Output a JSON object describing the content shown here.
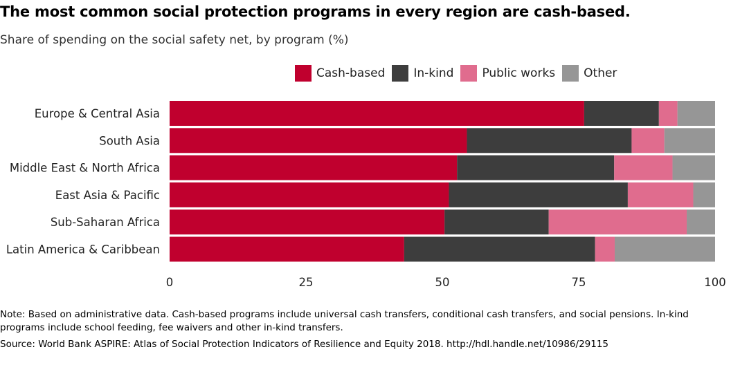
{
  "title": "The most common social protection programs in every region are cash-based.",
  "subtitle": "Share of spending on the social safety net, by program (%)",
  "note": "Note: Based on administrative data. Cash-based programs include universal cash transfers, conditional cash transfers, and social pensions. In-kind programs include school feeding, fee waivers and other in-kind transfers.",
  "source": "Source: World Bank ASPIRE: Atlas of Social Protection Indicators of Resilience and Equity  2018. http://hdl.handle.net/10986/29115",
  "chart_data": {
    "type": "bar",
    "orientation": "horizontal",
    "stacked": true,
    "categories": [
      "Europe & Central Asia",
      "South Asia",
      "Middle East & North Africa",
      "East Asia & Pacific",
      "Sub-Saharan Africa",
      "Latin America & Caribbean"
    ],
    "series": [
      {
        "name": "Cash-based",
        "color": "#c0002e",
        "values": [
          76,
          54.5,
          52.7,
          51.2,
          50.4,
          43
        ]
      },
      {
        "name": "In-kind",
        "color": "#3d3d3d",
        "values": [
          13.7,
          30.2,
          28.8,
          32.8,
          19.1,
          35
        ]
      },
      {
        "name": "Public works",
        "color": "#e06c8e",
        "values": [
          3.4,
          6,
          10.7,
          12,
          25.3,
          3.6
        ]
      },
      {
        "name": "Other",
        "color": "#969696",
        "values": [
          6.9,
          9.3,
          7.8,
          4,
          5.2,
          18.4
        ]
      }
    ],
    "xlim": [
      0,
      100
    ],
    "xticks": [
      0,
      25,
      50,
      75,
      100
    ],
    "xlabel": "",
    "ylabel": "",
    "legend_position": "top-right",
    "grid": false
  }
}
